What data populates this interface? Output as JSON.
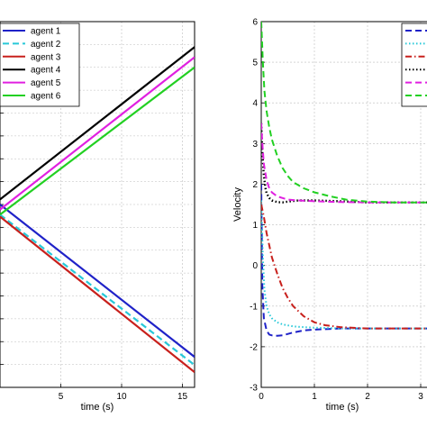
{
  "chart_data": [
    {
      "type": "line",
      "title": "",
      "xlabel": "time (s)",
      "ylabel": "",
      "xlim": [
        0,
        16
      ],
      "grid": true,
      "legend": "top-left",
      "x_ticks": [
        "5",
        "10",
        "15"
      ],
      "series": [
        {
          "name": "agent 1",
          "color": "#1f22c8",
          "style": "solid",
          "x": [
            0,
            16
          ],
          "y": [
            6.0,
            -9.0
          ]
        },
        {
          "name": "agent 2",
          "color": "#27c8d8",
          "style": "dashed",
          "x": [
            0,
            16
          ],
          "y": [
            5.0,
            -9.8
          ]
        },
        {
          "name": "agent 3",
          "color": "#c8201c",
          "style": "solid",
          "x": [
            0,
            16
          ],
          "y": [
            4.8,
            -10.5
          ]
        },
        {
          "name": "agent 4",
          "color": "#000000",
          "style": "solid",
          "x": [
            0,
            16
          ],
          "y": [
            6.5,
            21.5
          ]
        },
        {
          "name": "agent 5",
          "color": "#e020e0",
          "style": "solid",
          "x": [
            0,
            16
          ],
          "y": [
            5.5,
            20.5
          ]
        },
        {
          "name": "agent 6",
          "color": "#22d022",
          "style": "solid",
          "x": [
            0,
            16
          ],
          "y": [
            5.0,
            19.5
          ]
        }
      ]
    },
    {
      "type": "line",
      "title": "",
      "xlabel": "time (s)",
      "ylabel": "Velocity",
      "xlim": [
        0,
        3.5
      ],
      "ylim": [
        -3,
        6
      ],
      "grid": true,
      "legend": "top-right",
      "x_ticks": [
        "0",
        "1",
        "2",
        "3"
      ],
      "y_ticks": [
        "-3",
        "-2",
        "-1",
        "0",
        "1",
        "2",
        "3",
        "4",
        "5",
        "6"
      ],
      "series": [
        {
          "color": "#1f22c8",
          "style": "dashed",
          "x": [
            0,
            0.02,
            0.05,
            0.1,
            0.15,
            0.2,
            0.3,
            0.4,
            0.6,
            0.8,
            1.0,
            1.5,
            2.0,
            3.5
          ],
          "y": [
            2.0,
            -0.5,
            -1.3,
            -1.6,
            -1.7,
            -1.72,
            -1.73,
            -1.72,
            -1.65,
            -1.6,
            -1.58,
            -1.55,
            -1.55,
            -1.55
          ]
        },
        {
          "color": "#27c8d8",
          "style": "dotted",
          "x": [
            0,
            0.03,
            0.06,
            0.1,
            0.15,
            0.2,
            0.3,
            0.4,
            0.6,
            0.8,
            1.0,
            1.5,
            2.0,
            3.5
          ],
          "y": [
            1.6,
            0.2,
            -0.6,
            -1.0,
            -1.2,
            -1.3,
            -1.4,
            -1.45,
            -1.5,
            -1.52,
            -1.53,
            -1.55,
            -1.55,
            -1.55
          ]
        },
        {
          "color": "#c8201c",
          "style": "dash-dot",
          "x": [
            0,
            0.05,
            0.1,
            0.2,
            0.3,
            0.4,
            0.5,
            0.6,
            0.8,
            1.0,
            1.2,
            1.5,
            2.0,
            2.5,
            3.5
          ],
          "y": [
            1.5,
            1.2,
            0.8,
            0.2,
            -0.2,
            -0.55,
            -0.8,
            -1.0,
            -1.25,
            -1.4,
            -1.47,
            -1.52,
            -1.55,
            -1.55,
            -1.55
          ]
        },
        {
          "color": "#000000",
          "style": "dotted",
          "x": [
            0,
            0.02,
            0.05,
            0.08,
            0.1,
            0.15,
            0.2,
            0.3,
            0.4,
            0.5,
            0.7,
            1.0,
            1.5,
            2.0,
            3.5
          ],
          "y": [
            3.5,
            2.8,
            2.2,
            1.9,
            1.78,
            1.66,
            1.6,
            1.56,
            1.55,
            1.57,
            1.6,
            1.6,
            1.58,
            1.55,
            1.55
          ]
        },
        {
          "color": "#e020e0",
          "style": "dashed",
          "x": [
            0,
            0.02,
            0.05,
            0.1,
            0.15,
            0.2,
            0.3,
            0.4,
            0.5,
            0.7,
            1.0,
            1.5,
            2.0,
            3.5
          ],
          "y": [
            3.5,
            3.0,
            2.5,
            2.1,
            1.9,
            1.8,
            1.7,
            1.66,
            1.62,
            1.6,
            1.58,
            1.56,
            1.55,
            1.55
          ]
        },
        {
          "color": "#22d022",
          "style": "dashed",
          "x": [
            0,
            0.03,
            0.06,
            0.1,
            0.15,
            0.2,
            0.3,
            0.4,
            0.5,
            0.6,
            0.8,
            1.0,
            1.3,
            1.6,
            2.0,
            2.5,
            3.5
          ],
          "y": [
            6.0,
            5.0,
            4.3,
            3.8,
            3.4,
            3.1,
            2.7,
            2.4,
            2.2,
            2.05,
            1.9,
            1.8,
            1.7,
            1.62,
            1.57,
            1.55,
            1.55
          ]
        }
      ]
    }
  ]
}
